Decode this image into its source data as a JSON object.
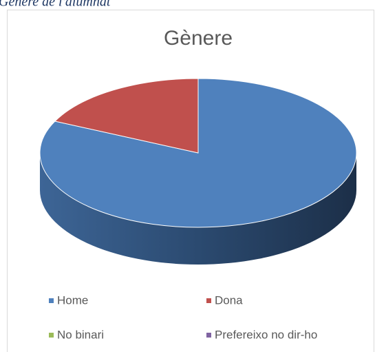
{
  "caption": "Gènere de l'alumnat",
  "chart_data": {
    "type": "pie3d",
    "title": "Gènere",
    "categories": [
      "Home",
      "Dona",
      "No binari",
      "Prefereixo no dir-ho"
    ],
    "values": [
      82,
      18,
      0,
      0
    ],
    "colors": [
      "#4f81bd",
      "#c0504d",
      "#9bbb59",
      "#8064a2"
    ],
    "legend": "bottom"
  }
}
